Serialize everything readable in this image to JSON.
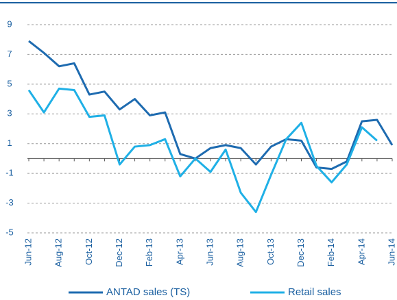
{
  "chart_data": {
    "type": "line",
    "categories": [
      "Jun-12",
      null,
      "Aug-12",
      null,
      "Oct-12",
      null,
      "Dec-12",
      null,
      "Feb-13",
      null,
      "Apr-13",
      null,
      "Jun-13",
      null,
      "Aug-13",
      null,
      "Oct-13",
      null,
      "Dec-13",
      null,
      "Feb-14",
      null,
      "Apr-14",
      null,
      "Jun-14"
    ],
    "series": [
      {
        "name": "ANTAD sales (TS)",
        "color": "#1e6bb0",
        "values": [
          7.9,
          7.1,
          6.2,
          6.4,
          4.3,
          4.5,
          3.3,
          4.0,
          2.9,
          3.1,
          0.3,
          0.0,
          0.7,
          0.9,
          0.7,
          -0.4,
          0.8,
          1.3,
          1.2,
          -0.6,
          -0.7,
          -0.2,
          2.5,
          2.6,
          0.9
        ]
      },
      {
        "name": "Retail sales",
        "color": "#1fb0e6",
        "values": [
          4.6,
          3.1,
          4.7,
          4.6,
          2.8,
          2.9,
          -0.4,
          0.8,
          0.9,
          1.3,
          -1.2,
          0.0,
          -0.9,
          0.6,
          -2.3,
          -3.6,
          -1.1,
          1.3,
          2.4,
          -0.5,
          -1.6,
          -0.4,
          2.1,
          1.2,
          null
        ]
      }
    ],
    "ylim": [
      -5,
      9
    ],
    "yticks": [
      -5,
      -3,
      -1,
      1,
      3,
      5,
      7,
      9
    ],
    "grid": true,
    "legend": "bottom"
  }
}
